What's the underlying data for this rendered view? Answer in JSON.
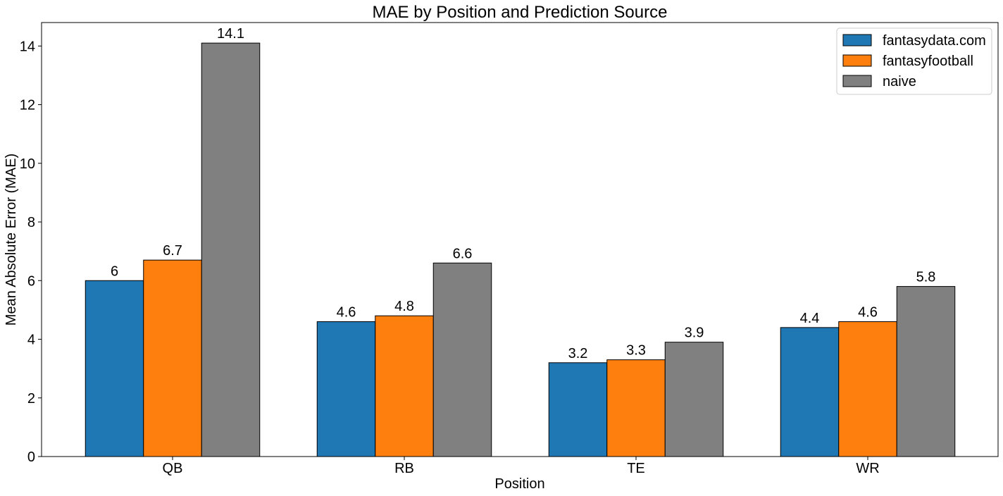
{
  "chart_data": {
    "type": "bar",
    "title": "MAE by Position and Prediction Source",
    "xlabel": "Position",
    "ylabel": "Mean Absolute Error (MAE)",
    "categories": [
      "QB",
      "RB",
      "TE",
      "WR"
    ],
    "series": [
      {
        "name": "fantasydata.com",
        "color": "#1f77b4",
        "values": [
          6,
          4.6,
          3.2,
          4.4
        ]
      },
      {
        "name": "fantasyfootball",
        "color": "#ff7f0e",
        "values": [
          6.7,
          4.8,
          3.3,
          4.6
        ]
      },
      {
        "name": "naive",
        "color": "#808080",
        "values": [
          14.1,
          6.6,
          3.9,
          5.8
        ]
      }
    ],
    "ylim": [
      0,
      14.8
    ],
    "yticks": [
      0,
      2,
      4,
      6,
      8,
      10,
      12,
      14
    ],
    "grid": false,
    "legend_position": "top-right",
    "data_labels": true
  }
}
